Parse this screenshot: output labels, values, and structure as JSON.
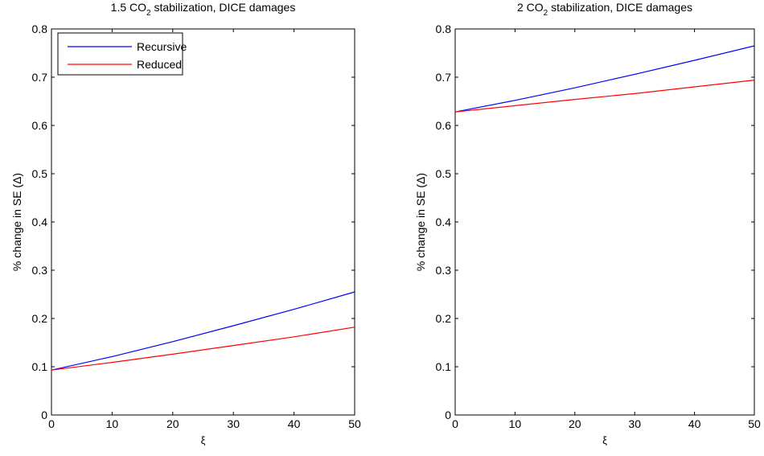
{
  "chart_data": [
    {
      "type": "line",
      "title": {
        "pre": "1.5 CO",
        "sub": "2",
        "post": " stabilization, DICE damages"
      },
      "xlabel": "ξ",
      "ylabel": "% change in SE  (Δ)",
      "xlim": [
        0,
        50
      ],
      "ylim": [
        0,
        0.8
      ],
      "xticks": [
        0,
        10,
        20,
        30,
        40,
        50
      ],
      "xtick_labels": [
        "0",
        "10",
        "20",
        "30",
        "40",
        "50"
      ],
      "yticks": [
        0,
        0.1,
        0.2,
        0.3,
        0.4,
        0.5,
        0.6,
        0.7,
        0.8
      ],
      "ytick_labels": [
        "0",
        "0.1",
        "0.2",
        "0.3",
        "0.4",
        "0.5",
        "0.6",
        "0.7",
        "0.8"
      ],
      "legend": "top-left",
      "grid": false,
      "series": [
        {
          "name": "Recursive",
          "color": "#0000ff",
          "x": [
            0,
            10,
            20,
            30,
            40,
            50
          ],
          "y": [
            0.093,
            0.121,
            0.152,
            0.185,
            0.219,
            0.255
          ]
        },
        {
          "name": "Reduced",
          "color": "#ff0000",
          "x": [
            0,
            10,
            20,
            30,
            40,
            50
          ],
          "y": [
            0.093,
            0.109,
            0.126,
            0.144,
            0.162,
            0.182
          ]
        }
      ]
    },
    {
      "type": "line",
      "title": {
        "pre": "2 CO",
        "sub": "2",
        "post": " stabilization, DICE damages"
      },
      "xlabel": "ξ",
      "ylabel": "% change in SE  (Δ)",
      "xlim": [
        0,
        50
      ],
      "ylim": [
        0,
        0.8
      ],
      "xticks": [
        0,
        10,
        20,
        30,
        40,
        50
      ],
      "xtick_labels": [
        "0",
        "10",
        "20",
        "30",
        "40",
        "50"
      ],
      "yticks": [
        0,
        0.1,
        0.2,
        0.3,
        0.4,
        0.5,
        0.6,
        0.7,
        0.8
      ],
      "ytick_labels": [
        "0",
        "0.1",
        "0.2",
        "0.3",
        "0.4",
        "0.5",
        "0.6",
        "0.7",
        "0.8"
      ],
      "grid": false,
      "series": [
        {
          "color": "#0000ff",
          "x": [
            0,
            10,
            20,
            30,
            40,
            50
          ],
          "y": [
            0.628,
            0.652,
            0.678,
            0.706,
            0.735,
            0.765
          ]
        },
        {
          "color": "#ff0000",
          "x": [
            0,
            10,
            20,
            30,
            40,
            50
          ],
          "y": [
            0.628,
            0.641,
            0.654,
            0.666,
            0.68,
            0.694
          ]
        }
      ]
    }
  ]
}
